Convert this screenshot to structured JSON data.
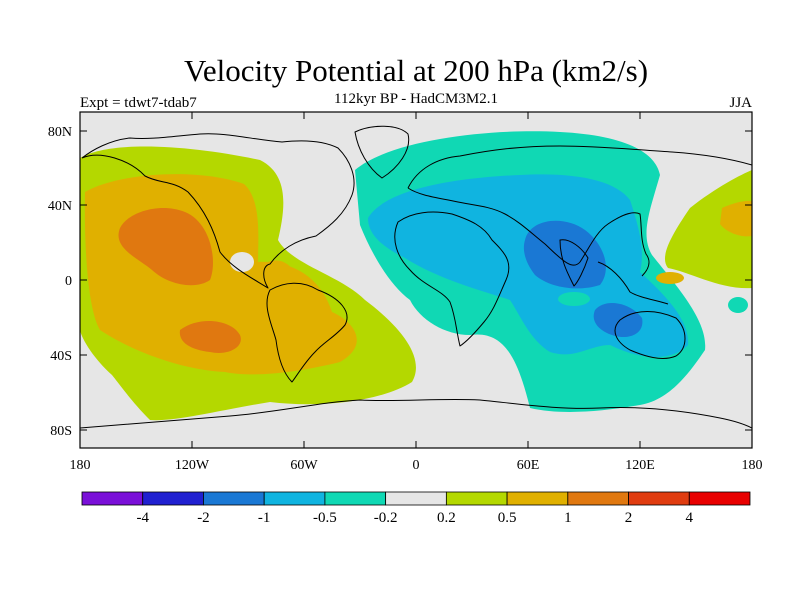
{
  "title": "Velocity Potential at 200 hPa (km2/s)",
  "subtitle": "112kyr BP - HadCM3M2.1",
  "experiment": "Expt = tdwt7-tdab7",
  "season": "JJA",
  "lat_ticks": [
    "80N",
    "40N",
    "0",
    "40S",
    "80S"
  ],
  "lon_ticks": [
    "180",
    "120W",
    "60W",
    "0",
    "60E",
    "120E",
    "180"
  ],
  "colorbar": {
    "colors": [
      "#7a10d8",
      "#2020d0",
      "#1a78d4",
      "#10b4e0",
      "#10d8b4",
      "#e6e6e6",
      "#b4d800",
      "#e0b000",
      "#e07810",
      "#e03c10",
      "#e80000"
    ],
    "labels": [
      "-4",
      "-2",
      "-1",
      "-0.5",
      "-0.2",
      "0.2",
      "0.5",
      "1",
      "2",
      "4"
    ]
  }
}
